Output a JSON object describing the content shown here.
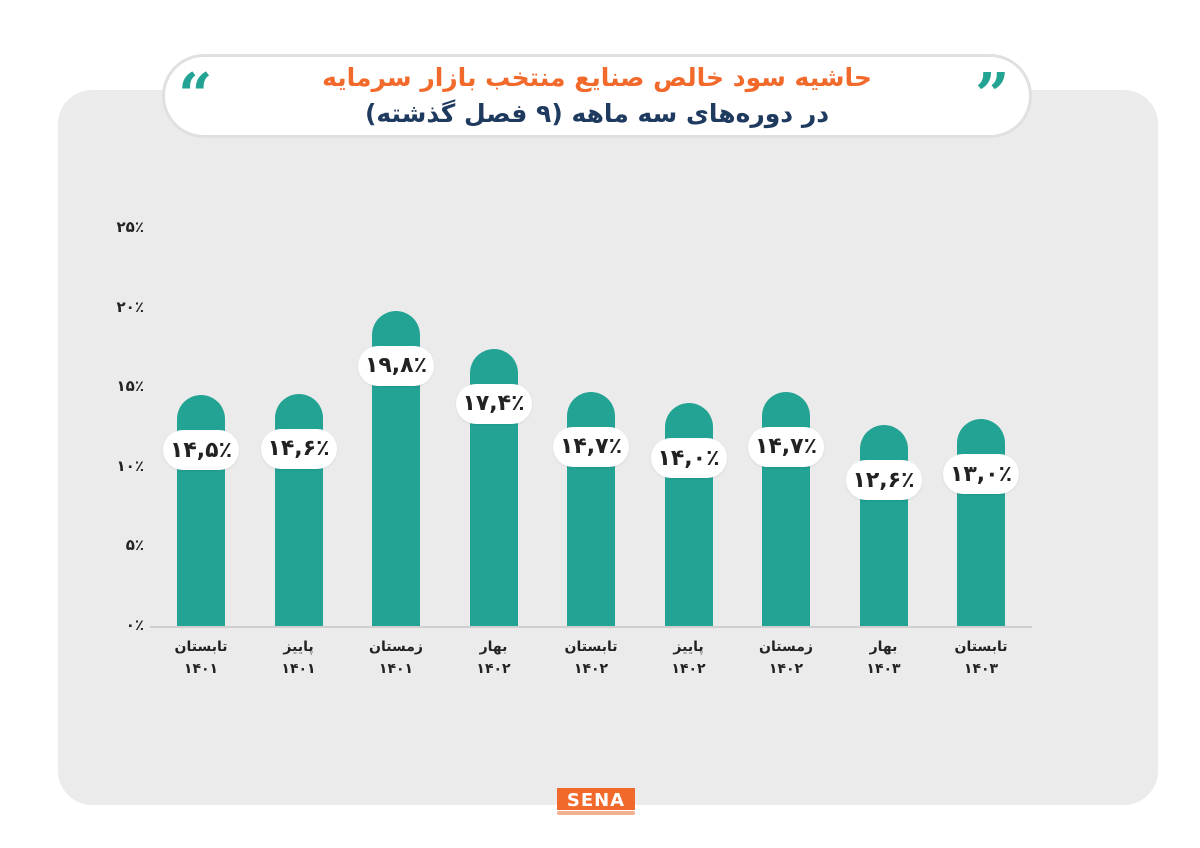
{
  "title": {
    "line1": "حاشیه سود خالص صنایع منتخب بازار سرمایه",
    "line2": "در دوره‌های سه ماهه (۹ فصل گذشته)"
  },
  "quote_icons": [
    "quote-open-icon",
    "quote-close-icon"
  ],
  "colors": {
    "bar": "#22a394",
    "title_accent": "#f26a2b",
    "title_main": "#1f3a5f",
    "card": "#ebebeb"
  },
  "chart_data": {
    "type": "bar",
    "title": "حاشیه سود خالص صنایع منتخب بازار سرمایه",
    "categories": [
      {
        "season": "تابستان",
        "year": "۱۴۰۱"
      },
      {
        "season": "پاییز",
        "year": "۱۴۰۱"
      },
      {
        "season": "زمستان",
        "year": "۱۴۰۱"
      },
      {
        "season": "بهار",
        "year": "۱۴۰۲"
      },
      {
        "season": "تابستان",
        "year": "۱۴۰۲"
      },
      {
        "season": "پاییز",
        "year": "۱۴۰۲"
      },
      {
        "season": "زمستان",
        "year": "۱۴۰۲"
      },
      {
        "season": "بهار",
        "year": "۱۴۰۳"
      },
      {
        "season": "تابستان",
        "year": "۱۴۰۳"
      }
    ],
    "values": [
      14.5,
      14.6,
      19.8,
      17.4,
      14.7,
      14.0,
      14.7,
      12.6,
      13.0
    ],
    "value_labels": [
      "۱۴,۵٪",
      "۱۴,۶٪",
      "۱۹,۸٪",
      "۱۷,۴٪",
      "۱۴,۷٪",
      "۱۴,۰٪",
      "۱۴,۷٪",
      "۱۲,۶٪",
      "۱۳,۰٪"
    ],
    "yticks": [
      "۰٪",
      "۵٪",
      "۱۰٪",
      "۱۵٪",
      "۲۰٪",
      "۲۵٪"
    ],
    "ylim": [
      0,
      25
    ],
    "xlabel": "",
    "ylabel": ""
  },
  "logo": {
    "text": "SENA"
  }
}
